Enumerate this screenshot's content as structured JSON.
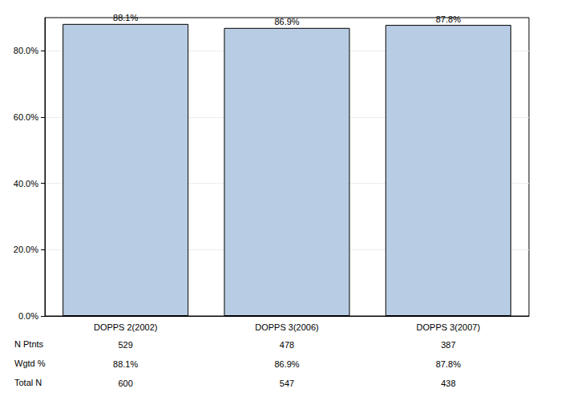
{
  "chart_data": {
    "type": "bar",
    "categories": [
      "DOPPS 2(2002)",
      "DOPPS 3(2006)",
      "DOPPS 3(2007)"
    ],
    "values": [
      88.1,
      86.9,
      87.8
    ],
    "value_labels": [
      "88.1%",
      "86.9%",
      "87.8%"
    ],
    "data_labels": true,
    "color": "#b8cce4",
    "ylim": [
      0,
      90
    ],
    "yticks": [
      {
        "value": 0,
        "label": "0.0%"
      },
      {
        "value": 20,
        "label": "20.0%"
      },
      {
        "value": 40,
        "label": "40.0%"
      },
      {
        "value": 60,
        "label": "60.0%"
      },
      {
        "value": 80,
        "label": "80.0%"
      }
    ],
    "grid": true,
    "table": [
      {
        "label": "N Ptnts",
        "values": [
          529,
          478,
          387
        ]
      },
      {
        "label": "Wgtd %",
        "values": [
          "88.1%",
          "86.9%",
          "87.8%"
        ]
      },
      {
        "label": "Total N",
        "values": [
          600,
          547,
          438
        ]
      }
    ]
  }
}
